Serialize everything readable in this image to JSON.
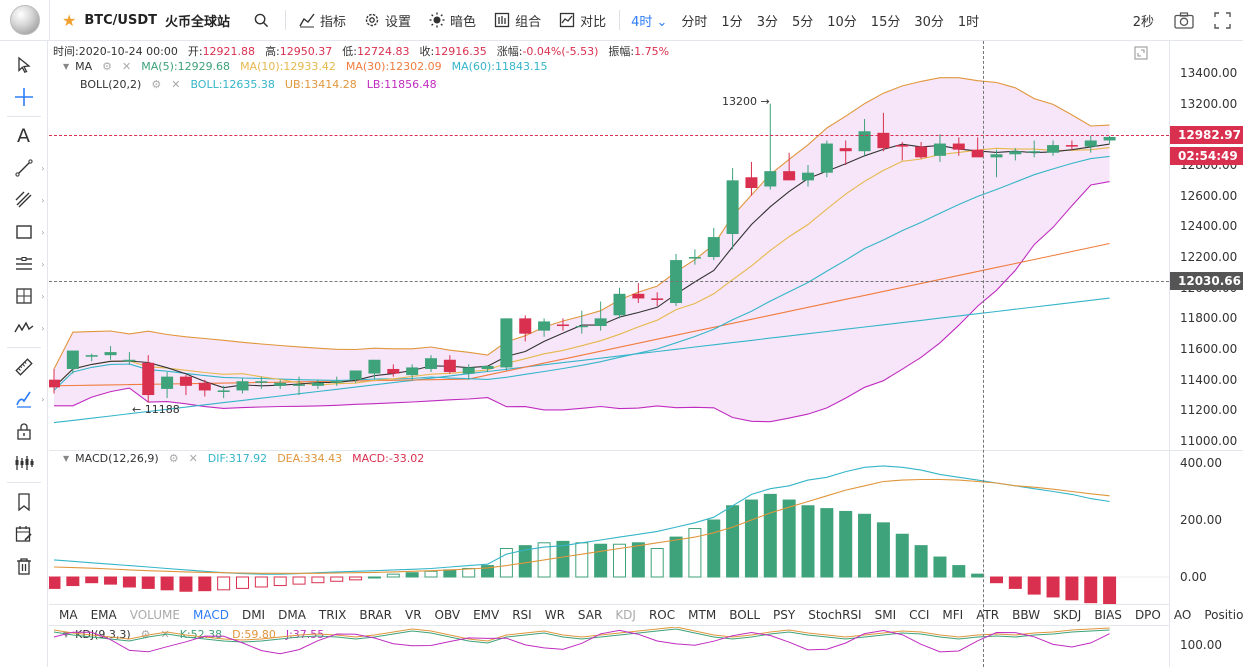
{
  "toolbar": {
    "symbol": "BTC/USDT",
    "exchange": "火币全球站",
    "indicators": "指标",
    "settings": "设置",
    "theme": "暗色",
    "layout": "组合",
    "compare": "对比",
    "intervals": [
      "4时",
      "分时",
      "1分",
      "3分",
      "5分",
      "10分",
      "15分",
      "30分",
      "1时"
    ],
    "active_interval": "4时",
    "refresh": "2秒"
  },
  "info": {
    "time_label": "时间:",
    "time": "2020-10-24 00:00",
    "open_label": "开:",
    "open": "12921.88",
    "high_label": "高:",
    "high": "12950.37",
    "low_label": "低:",
    "low": "12724.83",
    "close_label": "收:",
    "close": "12916.35",
    "change_label": "涨幅:",
    "change": "-0.04%(-5.53)",
    "amp_label": "振幅:",
    "amp": "1.75%"
  },
  "ma_legend": {
    "name": "MA",
    "ma5": "MA(5):12929.68",
    "ma10": "MA(10):12933.42",
    "ma30": "MA(30):12302.09",
    "ma60": "MA(60):11843.15"
  },
  "boll_legend": {
    "name": "BOLL(20,2)",
    "boll": "BOLL:12635.38",
    "ub": "UB:13414.28",
    "lb": "LB:11856.48"
  },
  "macd_legend": {
    "name": "MACD(12,26,9)",
    "dif": "DIF:317.92",
    "dea": "DEA:334.43",
    "macd": "MACD:-33.02"
  },
  "kdj_legend": {
    "name": "KDJ(9,3,3)",
    "k": "K:52.38",
    "d": "D:59.80",
    "j": "J:37.55"
  },
  "price_axis": [
    "13400.00",
    "13200.00",
    "13000.00",
    "12800.00",
    "12600.00",
    "12400.00",
    "12200.00",
    "12000.00",
    "11800.00",
    "11600.00",
    "11400.00",
    "11200.00",
    "11000.00"
  ],
  "macd_axis": [
    "400.00",
    "200.00",
    "0.00"
  ],
  "kdj_axis": [
    "100.00"
  ],
  "last_price": "12982.97",
  "countdown": "02:54:49",
  "crosshair_price": "12030.66",
  "annotations": {
    "high": "13200",
    "low": "11188"
  },
  "indicator_tabs": [
    "MA",
    "EMA",
    "VOLUME",
    "MACD",
    "DMI",
    "DMA",
    "TRIX",
    "BRAR",
    "VR",
    "OBV",
    "EMV",
    "RSI",
    "WR",
    "SAR",
    "KDJ",
    "ROC",
    "MTM",
    "BOLL",
    "PSY",
    "StochRSI",
    "SMI",
    "CCI",
    "MFI",
    "ATR",
    "BBW",
    "SKDJ",
    "BIAS",
    "DPO",
    "AO",
    "Position"
  ],
  "active_tab": "MACD",
  "disabled_tabs": [
    "VOLUME",
    "KDJ"
  ],
  "colors": {
    "up": "#d9304f",
    "down": "#3ea27a",
    "accent": "#2e7cf6",
    "ma5": "#333333",
    "ma10": "#e6b84c",
    "ma30": "#f07c3f",
    "ma60": "#35b5c9",
    "boll_fill": "#f3dcf7",
    "lb": "#c02cc0",
    "ub": "#e0963c",
    "mid": "#35b5c9"
  },
  "chart_data": {
    "type": "candlestick",
    "y_range": [
      11000,
      13400
    ],
    "candles": [
      [
        11400,
        11470,
        11310,
        11350
      ],
      [
        11470,
        11580,
        11440,
        11590
      ],
      [
        11550,
        11570,
        11520,
        11560
      ],
      [
        11560,
        11620,
        11530,
        11580
      ],
      [
        11520,
        11580,
        11500,
        11530
      ],
      [
        11510,
        11560,
        11250,
        11300
      ],
      [
        11340,
        11450,
        11280,
        11420
      ],
      [
        11420,
        11430,
        11300,
        11360
      ],
      [
        11380,
        11400,
        11290,
        11330
      ],
      [
        11320,
        11360,
        11280,
        11330
      ],
      [
        11330,
        11410,
        11310,
        11390
      ],
      [
        11380,
        11420,
        11340,
        11390
      ],
      [
        11360,
        11400,
        11340,
        11380
      ],
      [
        11360,
        11420,
        11300,
        11370
      ],
      [
        11360,
        11400,
        11340,
        11380
      ],
      [
        11380,
        11420,
        11360,
        11390
      ],
      [
        11400,
        11460,
        11380,
        11460
      ],
      [
        11440,
        11520,
        11400,
        11530
      ],
      [
        11470,
        11500,
        11420,
        11440
      ],
      [
        11430,
        11500,
        11400,
        11480
      ],
      [
        11470,
        11560,
        11450,
        11540
      ],
      [
        11530,
        11560,
        11440,
        11450
      ],
      [
        11440,
        11500,
        11400,
        11480
      ],
      [
        11470,
        11490,
        11450,
        11490
      ],
      [
        11480,
        11800,
        11460,
        11800
      ],
      [
        11800,
        11820,
        11650,
        11700
      ],
      [
        11720,
        11800,
        11680,
        11780
      ],
      [
        11760,
        11800,
        11720,
        11750
      ],
      [
        11750,
        11850,
        11700,
        11750
      ],
      [
        11750,
        11910,
        11720,
        11800
      ],
      [
        11820,
        12000,
        11800,
        11960
      ],
      [
        11960,
        12030,
        11900,
        11930
      ],
      [
        11930,
        11970,
        11880,
        11920
      ],
      [
        11900,
        12220,
        11880,
        12180
      ],
      [
        12190,
        12250,
        12150,
        12200
      ],
      [
        12200,
        12390,
        12180,
        12330
      ],
      [
        12350,
        12780,
        12250,
        12700
      ],
      [
        12720,
        12820,
        12600,
        12650
      ],
      [
        12660,
        13200,
        12640,
        12760
      ],
      [
        12760,
        12880,
        12700,
        12700
      ],
      [
        12700,
        12800,
        12660,
        12750
      ],
      [
        12750,
        12960,
        12720,
        12940
      ],
      [
        12910,
        12960,
        12800,
        12890
      ],
      [
        12890,
        13100,
        12860,
        13020
      ],
      [
        13010,
        13140,
        12890,
        12910
      ],
      [
        12930,
        12950,
        12830,
        12920
      ],
      [
        12920,
        12950,
        12840,
        12850
      ],
      [
        12860,
        13000,
        12820,
        12940
      ],
      [
        12940,
        12980,
        12860,
        12900
      ],
      [
        12900,
        12980,
        12860,
        12850
      ],
      [
        12850,
        12900,
        12720,
        12870
      ],
      [
        12870,
        12910,
        12830,
        12890
      ],
      [
        12880,
        12960,
        12850,
        12890
      ],
      [
        12880,
        12960,
        12860,
        12930
      ],
      [
        12930,
        12960,
        12900,
        12920
      ],
      [
        12920,
        12990,
        12880,
        12960
      ],
      [
        12960,
        12990,
        12940,
        12983
      ]
    ],
    "macd_hist": [
      -40,
      -30,
      -20,
      -25,
      -35,
      -40,
      -45,
      -50,
      -48,
      -45,
      -40,
      -35,
      -30,
      -25,
      -20,
      -15,
      -10,
      0,
      10,
      15,
      20,
      25,
      30,
      40,
      100,
      110,
      120,
      125,
      120,
      115,
      115,
      120,
      100,
      140,
      170,
      200,
      250,
      270,
      290,
      270,
      250,
      240,
      230,
      220,
      190,
      150,
      110,
      70,
      40,
      10,
      -20,
      -40,
      -60,
      -70,
      -80,
      -90,
      -100
    ],
    "dif": [
      60,
      55,
      50,
      45,
      40,
      35,
      30,
      25,
      20,
      15,
      12,
      10,
      10,
      12,
      15,
      18,
      20,
      22,
      25,
      27,
      30,
      35,
      40,
      45,
      80,
      95,
      105,
      110,
      120,
      130,
      140,
      150,
      160,
      175,
      190,
      210,
      250,
      290,
      310,
      320,
      340,
      350,
      370,
      385,
      390,
      385,
      375,
      360,
      350,
      340,
      330,
      320,
      310,
      300,
      290,
      275,
      265
    ],
    "dea": [
      35,
      33,
      31,
      28,
      25,
      22,
      20,
      18,
      16,
      15,
      14,
      13,
      13,
      13,
      13,
      14,
      15,
      16,
      18,
      20,
      22,
      25,
      28,
      32,
      40,
      50,
      60,
      70,
      80,
      90,
      100,
      110,
      120,
      130,
      140,
      155,
      175,
      200,
      225,
      245,
      265,
      285,
      305,
      320,
      335,
      340,
      342,
      342,
      340,
      335,
      330,
      320,
      315,
      308,
      300,
      292,
      285
    ]
  }
}
